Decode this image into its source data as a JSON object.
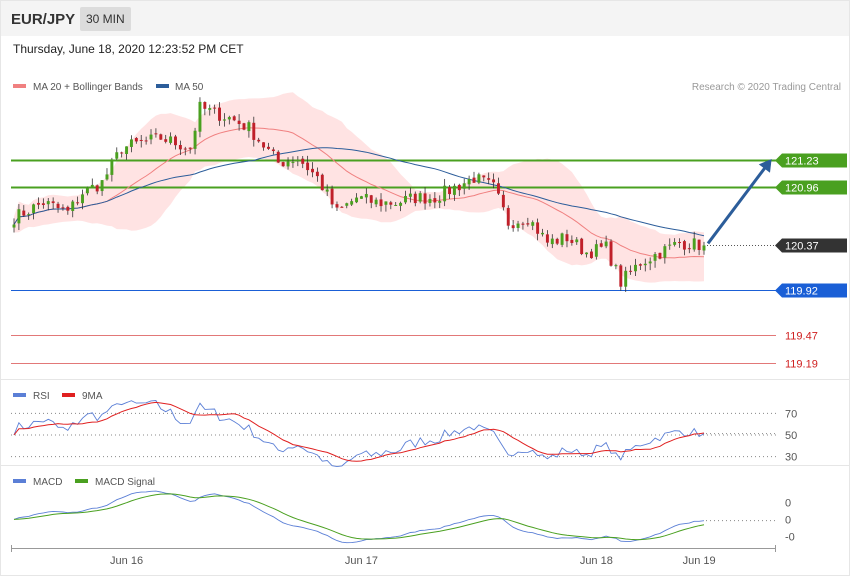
{
  "header": {
    "pair": "EUR/JPY",
    "timeframe": "30 MIN"
  },
  "datetime": "Thursday, June 18, 2020 12:23:52 PM CET",
  "legend": {
    "main": [
      {
        "label": "MA 20 + Bollinger Bands",
        "color": "#f08080"
      },
      {
        "label": "MA 50",
        "color": "#2c5d9a"
      }
    ],
    "rsi": [
      {
        "label": "RSI",
        "color": "#5b7fd6"
      },
      {
        "label": "9MA",
        "color": "#e02020"
      }
    ],
    "macd": [
      {
        "label": "MACD",
        "color": "#5b7fd6"
      },
      {
        "label": "MACD Signal",
        "color": "#4aa020"
      }
    ]
  },
  "credit": "Research © 2020 Trading Central",
  "colors": {
    "up": "#4aa020",
    "down": "#c0202a",
    "green_level": "#4aa020",
    "blue_level": "#1a5fd6",
    "red_level": "#d02020",
    "price_tag": "#333333",
    "band_fill": "#ffdede"
  },
  "chart_data": {
    "type": "candlestick",
    "x_ticks": [
      {
        "label": "Jun 16",
        "index": 23
      },
      {
        "label": "Jun 17",
        "index": 71
      },
      {
        "label": "Jun 18",
        "index": 119
      },
      {
        "label": "Jun 19",
        "index": 140
      }
    ],
    "price_range": [
      119.1,
      121.85
    ],
    "current_price": "120.37",
    "levels": [
      {
        "value": 121.23,
        "label": "121.23",
        "style": "green",
        "tag": true
      },
      {
        "value": 120.96,
        "label": "120.96",
        "style": "green",
        "tag": true
      },
      {
        "value": 119.92,
        "label": "119.92",
        "style": "blue",
        "tag": true
      },
      {
        "value": 119.47,
        "label": "119.47",
        "style": "red",
        "tag": false
      },
      {
        "value": 119.19,
        "label": "119.19",
        "style": "red",
        "tag": false
      }
    ],
    "forecast_arrow": {
      "from": 120.37,
      "to": 121.23
    },
    "close_anchors": [
      [
        0,
        120.65
      ],
      [
        6,
        120.8
      ],
      [
        11,
        120.7
      ],
      [
        14,
        120.9
      ],
      [
        18,
        121.0
      ],
      [
        22,
        121.35
      ],
      [
        30,
        121.45
      ],
      [
        36,
        121.35
      ],
      [
        38,
        121.75
      ],
      [
        44,
        121.65
      ],
      [
        48,
        121.55
      ],
      [
        54,
        121.2
      ],
      [
        58,
        121.25
      ],
      [
        62,
        121.05
      ],
      [
        66,
        120.7
      ],
      [
        70,
        120.85
      ],
      [
        74,
        120.8
      ],
      [
        78,
        120.8
      ],
      [
        82,
        120.85
      ],
      [
        86,
        120.85
      ],
      [
        90,
        120.95
      ],
      [
        94,
        121.05
      ],
      [
        98,
        120.95
      ],
      [
        101,
        120.6
      ],
      [
        105,
        120.65
      ],
      [
        109,
        120.4
      ],
      [
        113,
        120.45
      ],
      [
        117,
        120.3
      ],
      [
        121,
        120.35
      ],
      [
        124,
        120.0
      ],
      [
        128,
        120.2
      ],
      [
        132,
        120.3
      ],
      [
        136,
        120.4
      ],
      [
        141,
        120.37
      ]
    ],
    "candle_count": 142,
    "rsi": {
      "range": [
        25,
        75
      ],
      "levels": [
        {
          "value": 70,
          "label": "70"
        },
        {
          "value": 50,
          "label": "50"
        },
        {
          "value": 30,
          "label": "30"
        }
      ]
    },
    "macd": {
      "range": [
        -0.2,
        0.22
      ],
      "level_labels": [
        {
          "value": 0.12,
          "label": "0"
        },
        {
          "value": 0.0,
          "label": "0"
        },
        {
          "value": -0.12,
          "label": "-0"
        }
      ]
    }
  }
}
